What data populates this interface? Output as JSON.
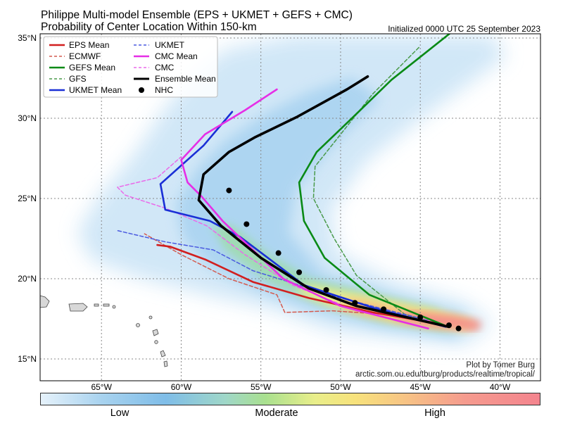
{
  "title_line1": "Philippe Multi-model Ensemble (EPS + UKMET + GEFS + CMC)",
  "title_line2": "Probability of Center Location Within 150-km",
  "initialized": "Initialized 0000 UTC 25 September 2023",
  "credit_line1": "Plot by Tomer Burg",
  "credit_line2": "arctic.som.ou.edu/tburg/products/realtime/tropical/",
  "lat_ticks": [
    "35°N",
    "30°N",
    "25°N",
    "20°N",
    "15°N"
  ],
  "lon_ticks": [
    "65°W",
    "60°W",
    "55°W",
    "50°W",
    "45°W",
    "40°W"
  ],
  "legend": {
    "eps_mean": "EPS Mean",
    "ecmwf": "ECMWF",
    "gefs_mean": "GEFS Mean",
    "gfs": "GFS",
    "ukmet_mean": "UKMET Mean",
    "ukmet": "UKMET",
    "cmc_mean": "CMC Mean",
    "cmc": "CMC",
    "ensemble_mean": "Ensemble Mean",
    "nhc": "NHC"
  },
  "colorbar": {
    "low": "Low",
    "moderate": "Moderate",
    "high": "High"
  },
  "colors": {
    "eps": "#d11f1f",
    "gefs": "#0a8a16",
    "ukmet": "#1a2fd6",
    "cmc": "#e62ee6",
    "ensemble": "#000000",
    "nhc": "#000000"
  },
  "storm": {
    "name": "Philippe",
    "nhc_forecast": [
      {
        "lon": -42.6,
        "lat": 16.9
      },
      {
        "lon": -43.2,
        "lat": 17.1
      },
      {
        "lon": -45.0,
        "lat": 17.6
      },
      {
        "lon": -47.3,
        "lat": 18.1
      },
      {
        "lon": -49.1,
        "lat": 18.5
      },
      {
        "lon": -50.9,
        "lat": 19.3
      },
      {
        "lon": -52.6,
        "lat": 20.4
      },
      {
        "lon": -53.9,
        "lat": 21.6
      },
      {
        "lon": -55.9,
        "lat": 23.4
      },
      {
        "lon": -57.0,
        "lat": 25.5
      }
    ],
    "ensemble_mean": [
      {
        "lon": -43.2,
        "lat": 17.0
      },
      {
        "lon": -49.0,
        "lat": 18.3
      },
      {
        "lon": -52.0,
        "lat": 19.4
      },
      {
        "lon": -55.0,
        "lat": 21.3
      },
      {
        "lon": -57.5,
        "lat": 23.3
      },
      {
        "lon": -58.9,
        "lat": 24.9
      },
      {
        "lon": -58.6,
        "lat": 26.5
      },
      {
        "lon": -57.0,
        "lat": 27.9
      },
      {
        "lon": -55.4,
        "lat": 28.8
      },
      {
        "lon": -52.7,
        "lat": 30.1
      },
      {
        "lon": -49.6,
        "lat": 31.8
      },
      {
        "lon": -48.3,
        "lat": 32.6
      }
    ],
    "eps_mean": [
      {
        "lon": -43.8,
        "lat": 17.2
      },
      {
        "lon": -48.0,
        "lat": 17.9
      },
      {
        "lon": -52.0,
        "lat": 18.8
      },
      {
        "lon": -55.5,
        "lat": 19.8
      },
      {
        "lon": -58.5,
        "lat": 21.2
      },
      {
        "lon": -60.7,
        "lat": 22.0
      },
      {
        "lon": -61.5,
        "lat": 22.1
      }
    ],
    "ecmwf": [
      {
        "lon": -44.0,
        "lat": 17.3
      },
      {
        "lon": -47.5,
        "lat": 17.8
      },
      {
        "lon": -50.5,
        "lat": 18.0
      },
      {
        "lon": -53.5,
        "lat": 17.9
      },
      {
        "lon": -54.0,
        "lat": 19.0
      },
      {
        "lon": -57.0,
        "lat": 20.0
      },
      {
        "lon": -60.0,
        "lat": 21.5
      },
      {
        "lon": -62.3,
        "lat": 22.8
      }
    ],
    "gefs_mean": [
      {
        "lon": -43.5,
        "lat": 17.1
      },
      {
        "lon": -48.2,
        "lat": 19.0
      },
      {
        "lon": -51.0,
        "lat": 21.3
      },
      {
        "lon": -52.3,
        "lat": 23.6
      },
      {
        "lon": -52.6,
        "lat": 26.0
      },
      {
        "lon": -51.5,
        "lat": 27.9
      },
      {
        "lon": -49.5,
        "lat": 29.8
      },
      {
        "lon": -46.8,
        "lat": 32.4
      },
      {
        "lon": -43.0,
        "lat": 35.4
      }
    ],
    "gfs": [
      {
        "lon": -43.2,
        "lat": 17.0
      },
      {
        "lon": -46.0,
        "lat": 17.8
      },
      {
        "lon": -49.0,
        "lat": 20.2
      },
      {
        "lon": -50.4,
        "lat": 22.5
      },
      {
        "lon": -51.7,
        "lat": 25.0
      },
      {
        "lon": -51.6,
        "lat": 27.0
      },
      {
        "lon": -50.0,
        "lat": 29.0
      },
      {
        "lon": -48.0,
        "lat": 31.5
      },
      {
        "lon": -45.0,
        "lat": 34.5
      }
    ],
    "ukmet_mean": [
      {
        "lon": -43.4,
        "lat": 17.0
      },
      {
        "lon": -48.0,
        "lat": 18.2
      },
      {
        "lon": -52.3,
        "lat": 19.6
      },
      {
        "lon": -56.3,
        "lat": 22.6
      },
      {
        "lon": -58.2,
        "lat": 23.6
      },
      {
        "lon": -61.0,
        "lat": 24.3
      },
      {
        "lon": -61.3,
        "lat": 25.9
      },
      {
        "lon": -58.6,
        "lat": 28.3
      },
      {
        "lon": -56.8,
        "lat": 30.4
      }
    ],
    "ukmet": [
      {
        "lon": -44.5,
        "lat": 17.4
      },
      {
        "lon": -50.0,
        "lat": 18.8
      },
      {
        "lon": -55.5,
        "lat": 20.5
      },
      {
        "lon": -58.0,
        "lat": 21.8
      },
      {
        "lon": -61.0,
        "lat": 22.3
      },
      {
        "lon": -64.0,
        "lat": 23.0
      }
    ],
    "cmc_mean": [
      {
        "lon": -44.5,
        "lat": 16.9
      },
      {
        "lon": -50.0,
        "lat": 18.3
      },
      {
        "lon": -53.6,
        "lat": 20.0
      },
      {
        "lon": -57.4,
        "lat": 23.6
      },
      {
        "lon": -58.7,
        "lat": 25.1
      },
      {
        "lon": -59.6,
        "lat": 26.0
      },
      {
        "lon": -60.0,
        "lat": 27.4
      },
      {
        "lon": -58.5,
        "lat": 29.0
      },
      {
        "lon": -56.0,
        "lat": 30.5
      },
      {
        "lon": -54.0,
        "lat": 31.8
      }
    ],
    "cmc": [
      {
        "lon": -44.0,
        "lat": 17.3
      },
      {
        "lon": -49.0,
        "lat": 18.0
      },
      {
        "lon": -53.0,
        "lat": 19.6
      },
      {
        "lon": -56.0,
        "lat": 21.5
      },
      {
        "lon": -58.4,
        "lat": 23.3
      },
      {
        "lon": -61.0,
        "lat": 24.4
      },
      {
        "lon": -63.5,
        "lat": 25.2
      },
      {
        "lon": -64.0,
        "lat": 25.7
      },
      {
        "lon": -61.5,
        "lat": 26.3
      },
      {
        "lon": -60.0,
        "lat": 27.6
      }
    ]
  }
}
